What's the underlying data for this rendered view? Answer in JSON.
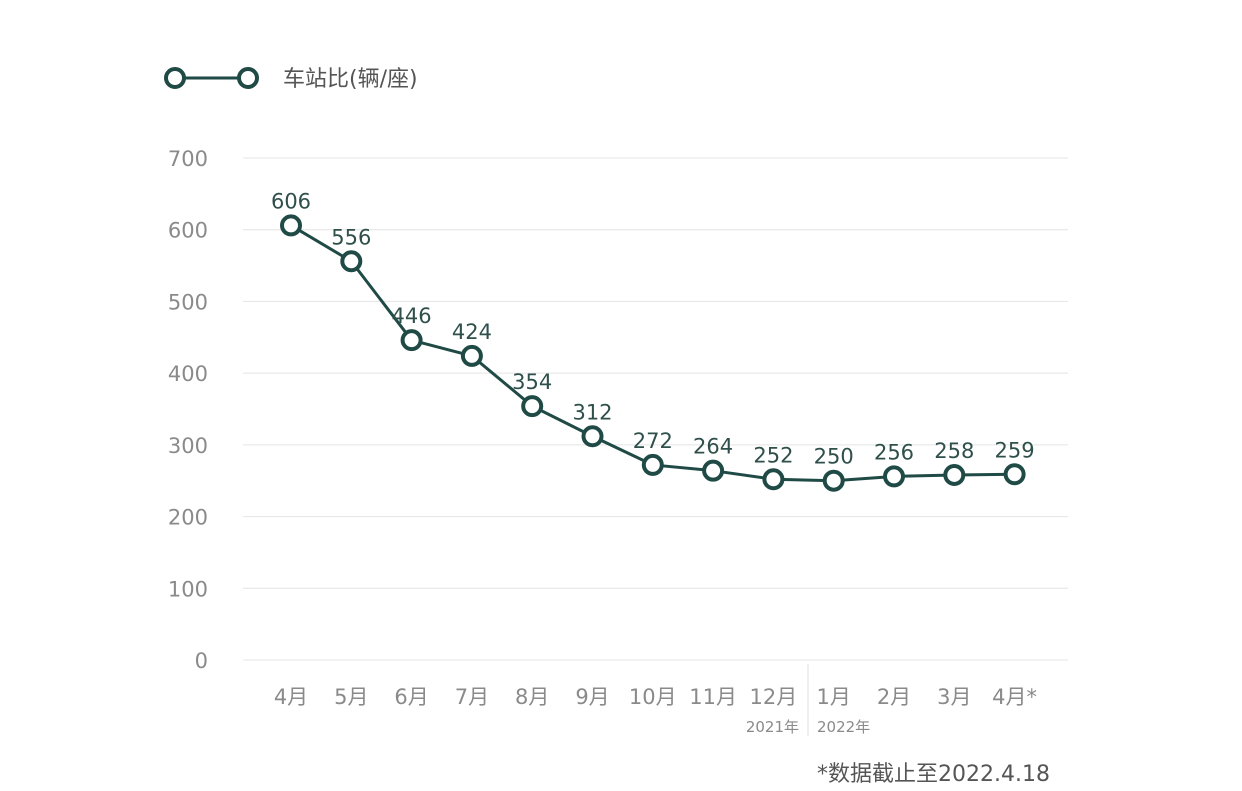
{
  "chart_data": {
    "type": "line",
    "categories": [
      "4月",
      "5月",
      "6月",
      "7月",
      "8月",
      "9月",
      "10月",
      "11月",
      "12月",
      "1月",
      "2月",
      "3月",
      "4月*"
    ],
    "series": [
      {
        "name": "车站比(辆/座)",
        "values": [
          606,
          556,
          446,
          424,
          354,
          312,
          272,
          264,
          252,
          250,
          256,
          258,
          259
        ],
        "color": "#1f4a45"
      }
    ],
    "yticks": [
      "0",
      "100",
      "200",
      "300",
      "400",
      "500",
      "600",
      "700"
    ],
    "ylim": [
      0,
      700
    ],
    "grid": true,
    "legend_position": "top-left",
    "year_labels": [
      "2021年",
      "2022年"
    ],
    "footnote": "*数据截止至2022.4.18"
  }
}
